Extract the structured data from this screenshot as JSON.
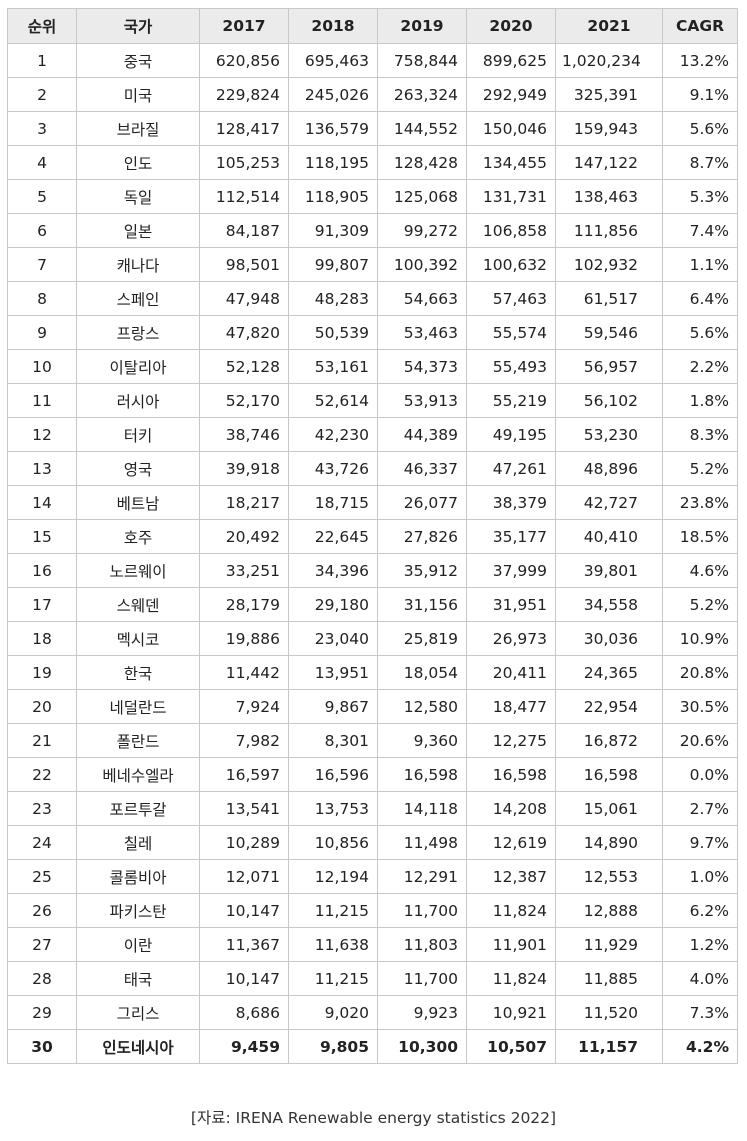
{
  "table": {
    "headers": [
      "순위",
      "국가",
      "2017",
      "2018",
      "2019",
      "2020",
      "2021",
      "CAGR"
    ],
    "rows": [
      [
        "1",
        "중국",
        "620,856",
        "695,463",
        "758,844",
        "899,625",
        "1,020,234",
        "13.2%"
      ],
      [
        "2",
        "미국",
        "229,824",
        "245,026",
        "263,324",
        "292,949",
        "325,391",
        "9.1%"
      ],
      [
        "3",
        "브라질",
        "128,417",
        "136,579",
        "144,552",
        "150,046",
        "159,943",
        "5.6%"
      ],
      [
        "4",
        "인도",
        "105,253",
        "118,195",
        "128,428",
        "134,455",
        "147,122",
        "8.7%"
      ],
      [
        "5",
        "독일",
        "112,514",
        "118,905",
        "125,068",
        "131,731",
        "138,463",
        "5.3%"
      ],
      [
        "6",
        "일본",
        "84,187",
        "91,309",
        "99,272",
        "106,858",
        "111,856",
        "7.4%"
      ],
      [
        "7",
        "캐나다",
        "98,501",
        "99,807",
        "100,392",
        "100,632",
        "102,932",
        "1.1%"
      ],
      [
        "8",
        "스페인",
        "47,948",
        "48,283",
        "54,663",
        "57,463",
        "61,517",
        "6.4%"
      ],
      [
        "9",
        "프랑스",
        "47,820",
        "50,539",
        "53,463",
        "55,574",
        "59,546",
        "5.6%"
      ],
      [
        "10",
        "이탈리아",
        "52,128",
        "53,161",
        "54,373",
        "55,493",
        "56,957",
        "2.2%"
      ],
      [
        "11",
        "러시아",
        "52,170",
        "52,614",
        "53,913",
        "55,219",
        "56,102",
        "1.8%"
      ],
      [
        "12",
        "터키",
        "38,746",
        "42,230",
        "44,389",
        "49,195",
        "53,230",
        "8.3%"
      ],
      [
        "13",
        "영국",
        "39,918",
        "43,726",
        "46,337",
        "47,261",
        "48,896",
        "5.2%"
      ],
      [
        "14",
        "베트남",
        "18,217",
        "18,715",
        "26,077",
        "38,379",
        "42,727",
        "23.8%"
      ],
      [
        "15",
        "호주",
        "20,492",
        "22,645",
        "27,826",
        "35,177",
        "40,410",
        "18.5%"
      ],
      [
        "16",
        "노르웨이",
        "33,251",
        "34,396",
        "35,912",
        "37,999",
        "39,801",
        "4.6%"
      ],
      [
        "17",
        "스웨덴",
        "28,179",
        "29,180",
        "31,156",
        "31,951",
        "34,558",
        "5.2%"
      ],
      [
        "18",
        "멕시코",
        "19,886",
        "23,040",
        "25,819",
        "26,973",
        "30,036",
        "10.9%"
      ],
      [
        "19",
        "한국",
        "11,442",
        "13,951",
        "18,054",
        "20,411",
        "24,365",
        "20.8%"
      ],
      [
        "20",
        "네덜란드",
        "7,924",
        "9,867",
        "12,580",
        "18,477",
        "22,954",
        "30.5%"
      ],
      [
        "21",
        "폴란드",
        "7,982",
        "8,301",
        "9,360",
        "12,275",
        "16,872",
        "20.6%"
      ],
      [
        "22",
        "베네수엘라",
        "16,597",
        "16,596",
        "16,598",
        "16,598",
        "16,598",
        "0.0%"
      ],
      [
        "23",
        "포르투갈",
        "13,541",
        "13,753",
        "14,118",
        "14,208",
        "15,061",
        "2.7%"
      ],
      [
        "24",
        "칠레",
        "10,289",
        "10,856",
        "11,498",
        "12,619",
        "14,890",
        "9.7%"
      ],
      [
        "25",
        "콜롬비아",
        "12,071",
        "12,194",
        "12,291",
        "12,387",
        "12,553",
        "1.0%"
      ],
      [
        "26",
        "파키스탄",
        "10,147",
        "11,215",
        "11,700",
        "11,824",
        "12,888",
        "6.2%"
      ],
      [
        "27",
        "이란",
        "11,367",
        "11,638",
        "11,803",
        "11,901",
        "11,929",
        "1.2%"
      ],
      [
        "28",
        "태국",
        "10,147",
        "11,215",
        "11,700",
        "11,824",
        "11,885",
        "4.0%"
      ],
      [
        "29",
        "그리스",
        "8,686",
        "9,020",
        "9,923",
        "10,921",
        "11,520",
        "7.3%"
      ],
      [
        "30",
        "인도네시아",
        "9,459",
        "9,805",
        "10,300",
        "10,507",
        "11,157",
        "4.2%"
      ]
    ],
    "highlighted_row": "30"
  },
  "source": "[자료: IRENA Renewable energy statistics 2022]"
}
